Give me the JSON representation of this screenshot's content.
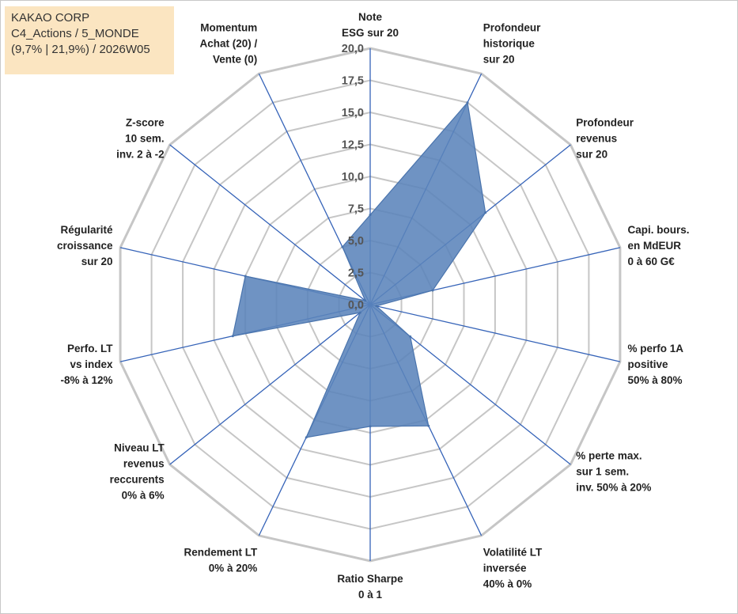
{
  "header": {
    "line1": "KAKAO CORP",
    "line2": "C4_Actions / 5_MONDE",
    "line3": "(9,7% | 21,9%) / 2026W05"
  },
  "colors": {
    "grid": "#c6c6c6",
    "spoke": "#3563b8",
    "fill": "#5b84bb",
    "outline": "#4a74ad",
    "header_bg": "#fbe5c1"
  },
  "chart_data": {
    "type": "radar",
    "ylim": [
      0,
      20
    ],
    "ticks": [
      "0,0",
      "2,5",
      "5,0",
      "7,5",
      "10,0",
      "12,5",
      "15,0",
      "17,5",
      "20,0"
    ],
    "tick_values": [
      0,
      2.5,
      5,
      7.5,
      10,
      12.5,
      15,
      17.5,
      20
    ],
    "axes": [
      {
        "label": [
          "Note",
          "ESG sur 20"
        ],
        "value": 7.0
      },
      {
        "label": [
          "Profondeur",
          "historique",
          "sur 20"
        ],
        "value": 17.5
      },
      {
        "label": [
          "Profondeur",
          "revenus",
          "sur 20"
        ],
        "value": 11.5
      },
      {
        "label": [
          "Capi. bours.",
          "en MdEUR",
          "0 à 60 G€"
        ],
        "value": 5.0
      },
      {
        "label": [
          "% perfo 1A",
          "positive",
          "50% à 80%"
        ],
        "value": 0.5
      },
      {
        "label": [
          "% perte max.",
          "sur 1 sem.",
          "inv. 50% à 20%"
        ],
        "value": 4.0
      },
      {
        "label": [
          "Volatilité LT",
          "inversée",
          "40% à 0%"
        ],
        "value": 10.5
      },
      {
        "label": [
          "Ratio Sharpe",
          "0 à 1"
        ],
        "value": 9.5
      },
      {
        "label": [
          "Rendement LT",
          "0% à 20%"
        ],
        "value": 11.5
      },
      {
        "label": [
          "Niveau LT",
          "revenus",
          "reccurents",
          "0% à 6%"
        ],
        "value": 1.0
      },
      {
        "label": [
          "Perfo. LT",
          "vs index",
          "-8% à 12%"
        ],
        "value": 11.0
      },
      {
        "label": [
          "Régularité",
          "croissance",
          "sur 20"
        ],
        "value": 10.0
      },
      {
        "label": [
          "Z-score",
          "10 sem.",
          "inv. 2 à -2"
        ],
        "value": 0.5
      },
      {
        "label": [
          "Momentum",
          "Achat (20) /",
          "Vente (0)"
        ],
        "value": 5.0
      }
    ]
  }
}
